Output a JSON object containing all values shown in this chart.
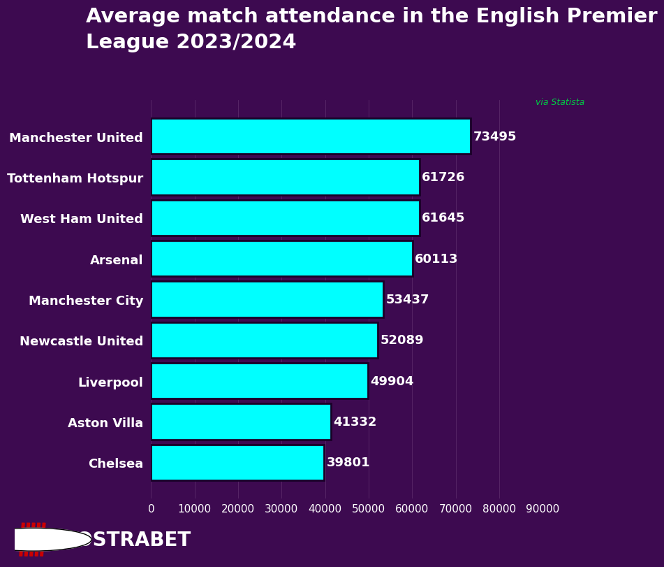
{
  "title": "Average match attendance in the English Premier\nLeague 2023/2024",
  "teams": [
    "Manchester United",
    "Tottenham Hotspur",
    "West Ham United",
    "Arsenal",
    "Manchester City",
    "Newcastle United",
    "Liverpool",
    "Aston Villa",
    "Chelsea"
  ],
  "values": [
    73495,
    61726,
    61645,
    60113,
    53437,
    52089,
    49904,
    41332,
    39801
  ],
  "bar_color": "#00FFFF",
  "bar_edge_color": "#1a0028",
  "background_color": "#3d0a50",
  "plot_bg_color": "#3d0a50",
  "text_color": "#ffffff",
  "value_color": "#ffffff",
  "title_color": "#ffffff",
  "source_text": "via Statista",
  "source_color": "#00cc44",
  "xlabel_ticks": [
    0,
    10000,
    20000,
    30000,
    40000,
    50000,
    60000,
    70000,
    80000,
    90000
  ],
  "xlim": [
    0,
    90000
  ],
  "title_fontsize": 21,
  "label_fontsize": 13,
  "value_fontsize": 13,
  "tick_fontsize": 11,
  "bar_height": 0.88,
  "logo_text": "NOSTRABET",
  "logo_color": "#ffffff"
}
